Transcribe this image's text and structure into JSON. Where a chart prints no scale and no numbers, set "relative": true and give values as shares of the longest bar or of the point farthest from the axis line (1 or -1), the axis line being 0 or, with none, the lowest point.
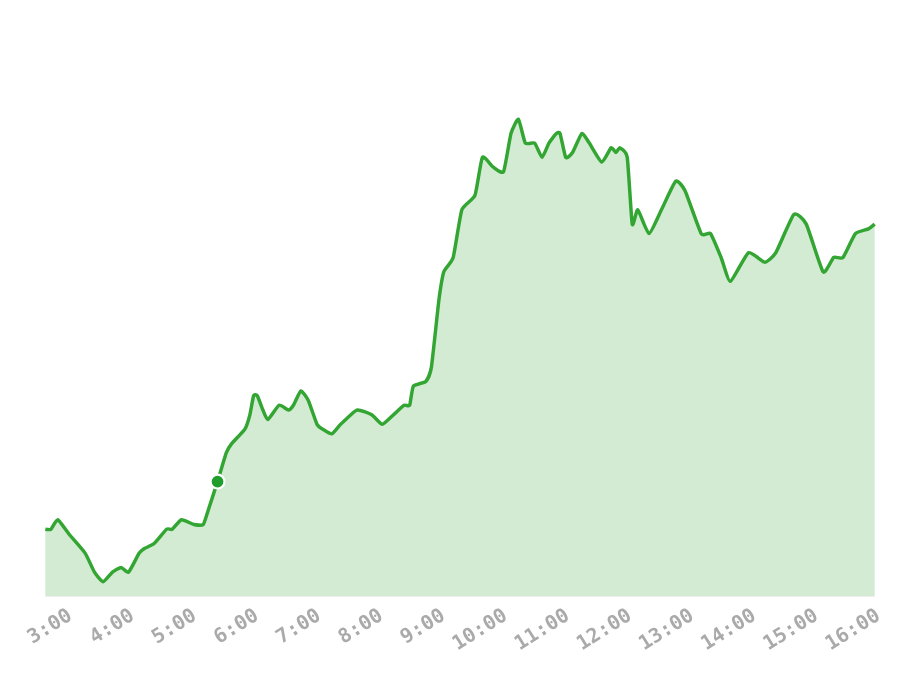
{
  "chart_data": {
    "type": "area",
    "relative": true,
    "xlim": [
      2.66,
      16.0
    ],
    "xticks": [
      {
        "value": 3,
        "label": "3:00"
      },
      {
        "value": 4,
        "label": "4:00"
      },
      {
        "value": 5,
        "label": "5:00"
      },
      {
        "value": 6,
        "label": "6:00"
      },
      {
        "value": 7,
        "label": "7:00"
      },
      {
        "value": 8,
        "label": "8:00"
      },
      {
        "value": 9,
        "label": "9:00"
      },
      {
        "value": 10,
        "label": "10:00"
      },
      {
        "value": 11,
        "label": "11:00"
      },
      {
        "value": 12,
        "label": "12:00"
      },
      {
        "value": 13,
        "label": "13:00"
      },
      {
        "value": 14,
        "label": "14:00"
      },
      {
        "value": 15,
        "label": "15:00"
      },
      {
        "value": 16,
        "label": "16:00"
      }
    ],
    "series": [
      {
        "color": "#33a532",
        "x": [
          2.66,
          2.75,
          2.86,
          3.04,
          3.3,
          3.45,
          3.59,
          3.74,
          3.88,
          4.0,
          4.17,
          4.26,
          4.41,
          4.61,
          4.7,
          4.85,
          5.05,
          5.2,
          5.28,
          5.43,
          5.57,
          5.66,
          5.87,
          5.95,
          6.01,
          6.07,
          6.16,
          6.24,
          6.42,
          6.57,
          6.65,
          6.77,
          6.89,
          7.03,
          7.12,
          7.27,
          7.41,
          7.67,
          7.91,
          8.08,
          8.26,
          8.43,
          8.52,
          8.58,
          8.78,
          8.87,
          8.99,
          9.07,
          9.22,
          9.36,
          9.57,
          9.69,
          9.86,
          10.03,
          10.15,
          10.27,
          10.38,
          10.53,
          10.65,
          10.76,
          10.88,
          10.94,
          11.03,
          11.14,
          11.29,
          11.41,
          11.61,
          11.76,
          11.84,
          11.9,
          12.02,
          12.1,
          12.19,
          12.37,
          12.57,
          12.8,
          12.95,
          13.21,
          13.36,
          13.53,
          13.68,
          13.97,
          14.23,
          14.41,
          14.7,
          14.9,
          15.17,
          15.34,
          15.49,
          15.69,
          15.9,
          16.0
        ],
        "values": [
          0.14,
          0.14,
          0.16,
          0.13,
          0.09,
          0.05,
          0.03,
          0.05,
          0.06,
          0.05,
          0.09,
          0.1,
          0.11,
          0.14,
          0.14,
          0.16,
          0.15,
          0.15,
          0.18,
          0.24,
          0.3,
          0.32,
          0.35,
          0.38,
          0.42,
          0.42,
          0.39,
          0.37,
          0.4,
          0.39,
          0.4,
          0.43,
          0.41,
          0.36,
          0.35,
          0.34,
          0.36,
          0.39,
          0.38,
          0.36,
          0.38,
          0.4,
          0.4,
          0.44,
          0.45,
          0.48,
          0.62,
          0.68,
          0.71,
          0.81,
          0.84,
          0.92,
          0.9,
          0.89,
          0.97,
          1.0,
          0.95,
          0.95,
          0.92,
          0.95,
          0.97,
          0.97,
          0.92,
          0.93,
          0.97,
          0.95,
          0.91,
          0.94,
          0.93,
          0.94,
          0.92,
          0.78,
          0.81,
          0.76,
          0.81,
          0.87,
          0.85,
          0.76,
          0.76,
          0.71,
          0.66,
          0.72,
          0.7,
          0.72,
          0.8,
          0.78,
          0.68,
          0.71,
          0.71,
          0.76,
          0.77,
          0.78
        ]
      },
      {
        "type": "scatter",
        "marker": "circle",
        "color": "#1f9e2c",
        "x": [
          5.43
        ],
        "values": [
          0.24
        ]
      }
    ]
  }
}
